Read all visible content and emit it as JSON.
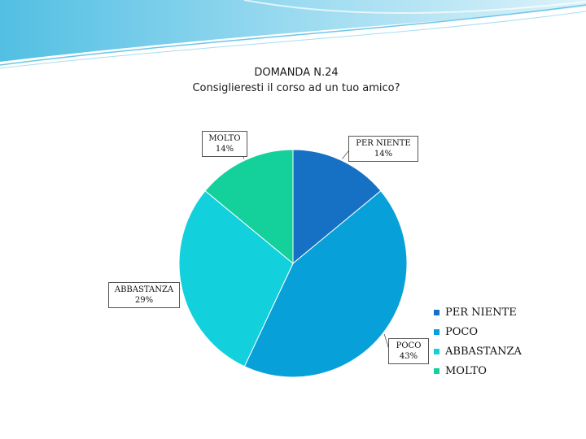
{
  "chart_data": {
    "type": "pie",
    "title": "DOMANDA N.24",
    "subtitle": "Consiglieresti il corso ad un tuo amico?",
    "categories": [
      "PER NIENTE",
      "POCO",
      "ABBASTANZA",
      "MOLTO"
    ],
    "values": [
      14,
      43,
      29,
      14
    ],
    "data_labels": [
      "14%",
      "43%",
      "29%",
      "14%"
    ],
    "colors": [
      "#1670c4",
      "#08a0d8",
      "#12d0dc",
      "#14d09a"
    ],
    "legend": "right-bottom"
  }
}
